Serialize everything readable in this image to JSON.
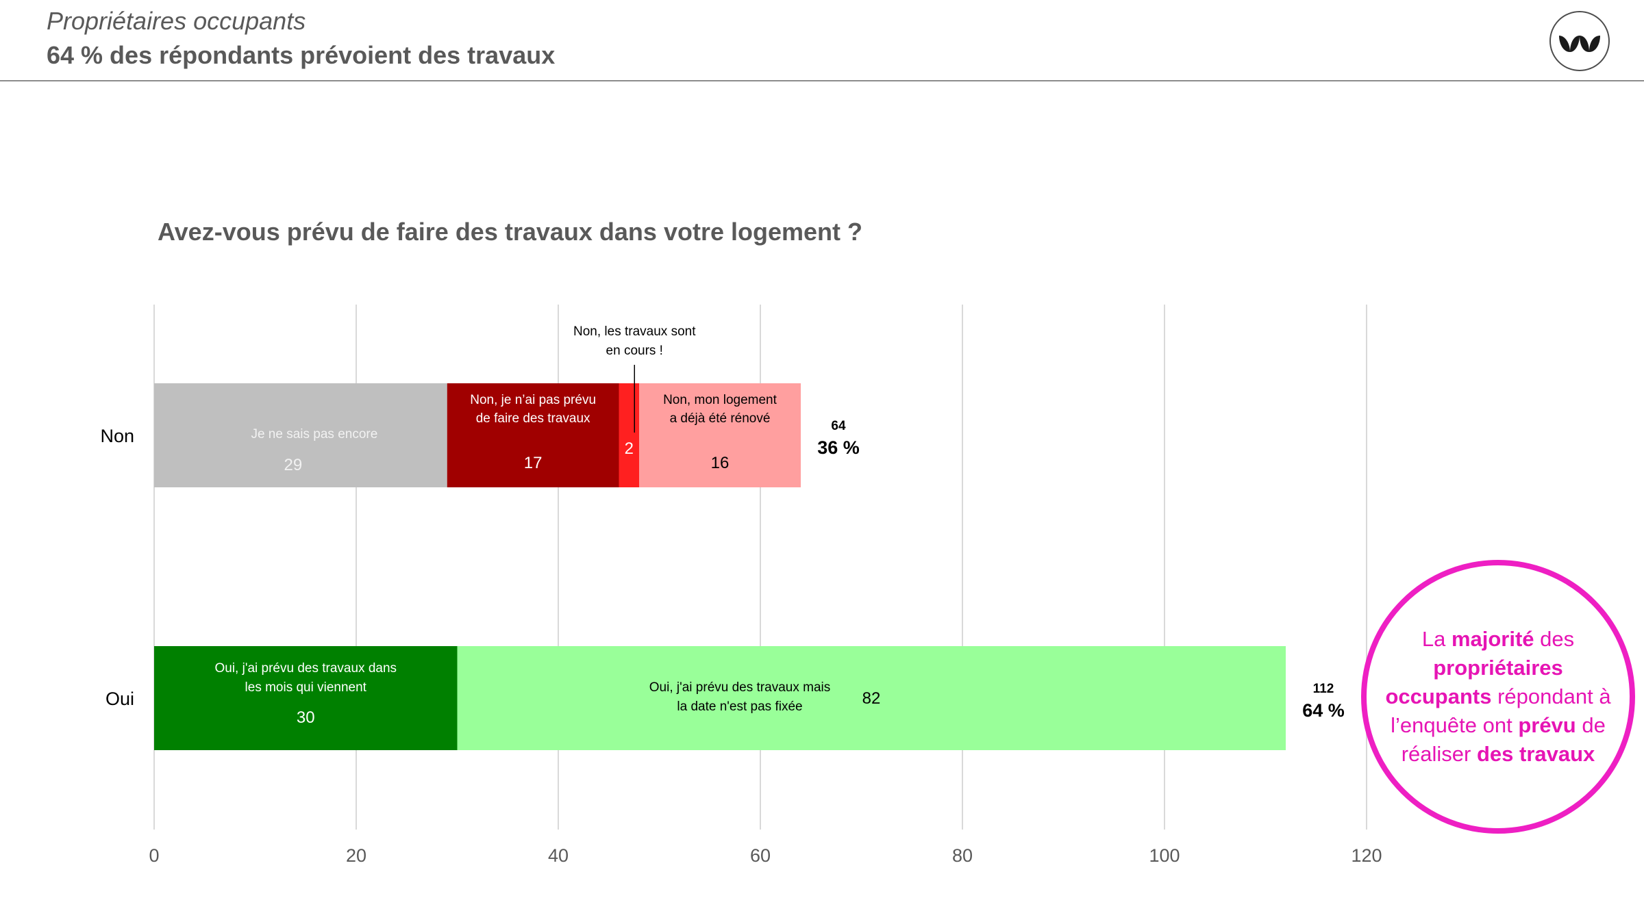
{
  "header": {
    "title": "Propriétaires occupants",
    "subtitle": "64 % des répondants prévoient des travaux",
    "logo_icon": "leaf-logo-icon"
  },
  "chart_title": "Avez-vous prévu de faire des travaux dans votre logement ?",
  "chart_data": {
    "type": "bar",
    "orientation": "horizontal",
    "stacked": true,
    "title": "Avez-vous prévu de faire des travaux dans votre logement ?",
    "xlim": [
      0,
      120
    ],
    "x_ticks": [
      "0",
      "20",
      "40",
      "60",
      "80",
      "100",
      "120"
    ],
    "grid": "vertical",
    "categories": [
      {
        "label": "Non",
        "total": "64",
        "percent": "36 %",
        "segments": [
          {
            "name": "Je ne sais pas encore",
            "value": 29,
            "color": "#bfbfbf",
            "text_color": "#f2f2f2"
          },
          {
            "name": "Non, je n’ai pas prévu de faire des travaux",
            "value": 17,
            "color": "#a00000",
            "text_color": "#ffffff"
          },
          {
            "name": "Non, les travaux sont en cours !",
            "value": 2,
            "color": "#ff2020",
            "text_color": "#ffffff",
            "external_label": true
          },
          {
            "name": "Non, mon logement a déjà été rénové",
            "value": 16,
            "color": "#ff9f9f",
            "text_color": "#000000"
          }
        ]
      },
      {
        "label": "Oui",
        "total": "112",
        "percent": "64 %",
        "segments": [
          {
            "name": "Oui, j'ai prévu des travaux dans les mois qui viennent",
            "value": 30,
            "color": "#008000",
            "text_color": "#ffffff"
          },
          {
            "name": "Oui, j'ai prévu des travaux mais la date n'est pas fixée",
            "value": 82,
            "color": "#99ff99",
            "text_color": "#000000"
          }
        ]
      }
    ]
  },
  "callout": {
    "parts": [
      {
        "text": "La ",
        "bold": false
      },
      {
        "text": "majorité",
        "bold": true
      },
      {
        "text": " des ",
        "bold": false
      },
      {
        "text": "propriétaires occupants",
        "bold": true
      },
      {
        "text": " répondant à l’enquête ont ",
        "bold": false
      },
      {
        "text": "prévu",
        "bold": true
      },
      {
        "text": " de réaliser ",
        "bold": false
      },
      {
        "text": "des travaux",
        "bold": true
      }
    ],
    "color": "#e614b4"
  }
}
